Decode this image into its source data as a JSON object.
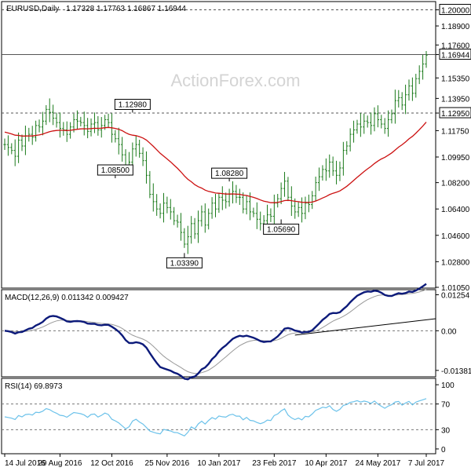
{
  "chart_data": [
    {
      "type": "candlestick",
      "header": {
        "symbol": "EURUSD,Daily",
        "ohlc": "1.17328 1.17763 1.16867 1.16944"
      },
      "watermark": "ActionForex.com",
      "y_ticks": [
        "1.20000",
        "1.18900",
        "1.17600",
        "1.16944",
        "1.15350",
        "1.13950",
        "1.12950",
        "1.11750",
        "1.09950",
        "1.08200",
        "1.06400",
        "1.04600",
        "1.02800",
        "1.01050"
      ],
      "ylim": [
        1.0105,
        1.2035
      ],
      "highlighted_levels": [
        {
          "value": 1.2,
          "label": "1.20000",
          "style": "dashed"
        },
        {
          "value": 1.16944,
          "label": "1.16944",
          "style": "solid"
        },
        {
          "value": 1.1295,
          "label": "1.12950",
          "style": "dashed"
        }
      ],
      "annotations": [
        {
          "text": "1.12980",
          "date_index": 37,
          "value": 1.1298
        },
        {
          "text": "1.08500",
          "date_index": 32,
          "value": 1.085
        },
        {
          "text": "1.08280",
          "date_index": 65,
          "value": 1.0828
        },
        {
          "text": "1.05690",
          "date_index": 80,
          "value": 1.0569
        },
        {
          "text": "1.03390",
          "date_index": 52,
          "value": 1.0339
        }
      ],
      "close": [
        1.108,
        1.106,
        1.104,
        1.1,
        1.111,
        1.107,
        1.114,
        1.115,
        1.113,
        1.121,
        1.12,
        1.124,
        1.132,
        1.13,
        1.126,
        1.123,
        1.119,
        1.118,
        1.115,
        1.12,
        1.125,
        1.124,
        1.123,
        1.121,
        1.117,
        1.122,
        1.123,
        1.118,
        1.121,
        1.125,
        1.123,
        1.115,
        1.112,
        1.108,
        1.101,
        1.093,
        1.096,
        1.105,
        1.108,
        1.102,
        1.097,
        1.087,
        1.074,
        1.069,
        1.064,
        1.061,
        1.068,
        1.065,
        1.062,
        1.056,
        1.055,
        1.048,
        1.04,
        1.045,
        1.054,
        1.047,
        1.056,
        1.062,
        1.053,
        1.061,
        1.068,
        1.064,
        1.072,
        1.07,
        1.069,
        1.074,
        1.076,
        1.072,
        1.072,
        1.064,
        1.069,
        1.062,
        1.061,
        1.057,
        1.054,
        1.056,
        1.06,
        1.059,
        1.068,
        1.071,
        1.078,
        1.083,
        1.072,
        1.066,
        1.062,
        1.065,
        1.061,
        1.068,
        1.067,
        1.073,
        1.082,
        1.086,
        1.091,
        1.09,
        1.096,
        1.09,
        1.087,
        1.092,
        1.104,
        1.107,
        1.115,
        1.118,
        1.122,
        1.12,
        1.124,
        1.123,
        1.121,
        1.129,
        1.125,
        1.122,
        1.119,
        1.125,
        1.129,
        1.138,
        1.14,
        1.135,
        1.142,
        1.148,
        1.143,
        1.153,
        1.158,
        1.163,
        1.169
      ],
      "ma_start": 1.117,
      "x_ticks": [
        {
          "label": "14 Jul 2016",
          "index": 0
        },
        {
          "label": "29 Aug 2016",
          "index": 16
        },
        {
          "label": "12 Oct 2016",
          "index": 31
        },
        {
          "label": "25 Nov 2016",
          "index": 47
        },
        {
          "label": "10 Jan 2017",
          "index": 62
        },
        {
          "label": "23 Feb 2017",
          "index": 78
        },
        {
          "label": "10 Apr 2017",
          "index": 93
        },
        {
          "label": "24 May 2017",
          "index": 108
        },
        {
          "label": "7 Jul 2017",
          "index": 122
        }
      ]
    },
    {
      "type": "line",
      "title": "MACD(12,26,9) 0.011342 0.009427",
      "y_ticks": [
        "0.01254",
        "0.00",
        "-0.013815"
      ],
      "ylim": [
        -0.0155,
        0.0135
      ],
      "trendline": {
        "from_index": 84,
        "from_value": -0.0015,
        "to_index": 132,
        "to_value": 0.0042
      }
    },
    {
      "type": "line",
      "title": "RSI(14) 69.8973",
      "y_ticks": [
        "100",
        "70",
        "30",
        "0"
      ],
      "ylim": [
        -5,
        105
      ],
      "levels": [
        70,
        30
      ]
    }
  ]
}
